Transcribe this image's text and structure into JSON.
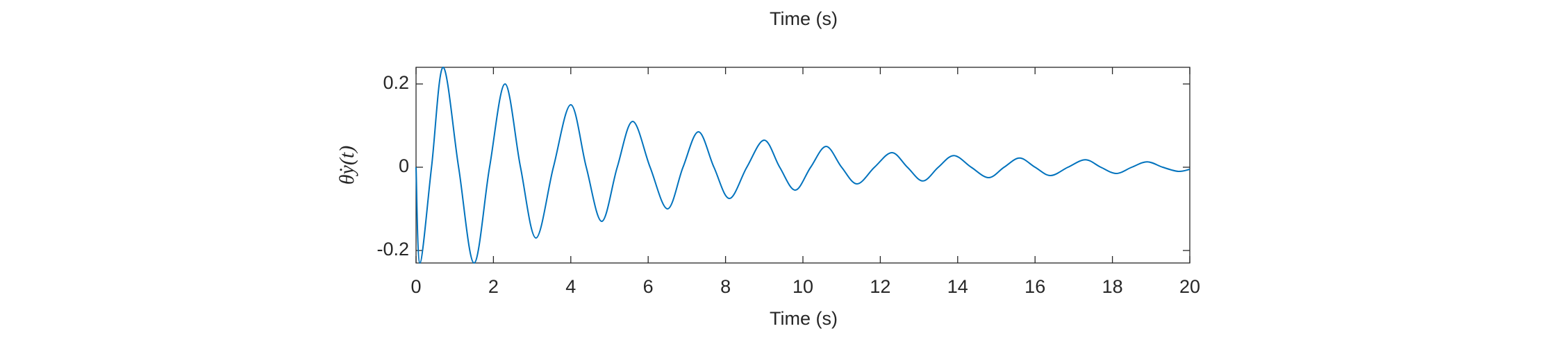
{
  "clipped_axis_label": "Time (s)",
  "chart_data": {
    "type": "line",
    "xlabel": "Time (s)",
    "ylabel": "θ̇y(t)",
    "x": [
      0,
      0.1,
      0.4,
      0.7,
      1.1,
      1.5,
      1.9,
      2.3,
      2.7,
      3.1,
      3.55,
      4.0,
      4.4,
      4.8,
      5.2,
      5.6,
      6.05,
      6.5,
      6.9,
      7.3,
      7.7,
      8.1,
      8.55,
      9.0,
      9.4,
      9.8,
      10.2,
      10.6,
      11.0,
      11.4,
      11.85,
      12.3,
      12.7,
      13.1,
      13.5,
      13.9,
      14.35,
      14.8,
      15.2,
      15.6,
      16.0,
      16.4,
      16.85,
      17.3,
      17.7,
      18.1,
      18.5,
      18.9,
      19.3,
      19.7,
      20
    ],
    "series": [
      {
        "color": "#0072bd",
        "values": [
          0,
          -0.23,
          0,
          0.24,
          0,
          -0.23,
          0,
          0.2,
          0,
          -0.17,
          0,
          0.15,
          0,
          -0.13,
          0,
          0.11,
          0,
          -0.1,
          0,
          0.085,
          0,
          -0.075,
          0,
          0.065,
          0,
          -0.055,
          0,
          0.05,
          0,
          -0.04,
          0,
          0.035,
          0,
          -0.033,
          0,
          0.028,
          0,
          -0.025,
          0,
          0.022,
          0,
          -0.02,
          0,
          0.018,
          0,
          -0.015,
          0,
          0.013,
          0,
          -0.01,
          -0.005
        ]
      }
    ],
    "xlim": [
      0,
      20
    ],
    "xticks": [
      0,
      2,
      4,
      6,
      8,
      10,
      12,
      14,
      16,
      18,
      20
    ],
    "ylim": [
      -0.23,
      0.24
    ],
    "yticks": [
      -0.2,
      0,
      0.2
    ]
  }
}
